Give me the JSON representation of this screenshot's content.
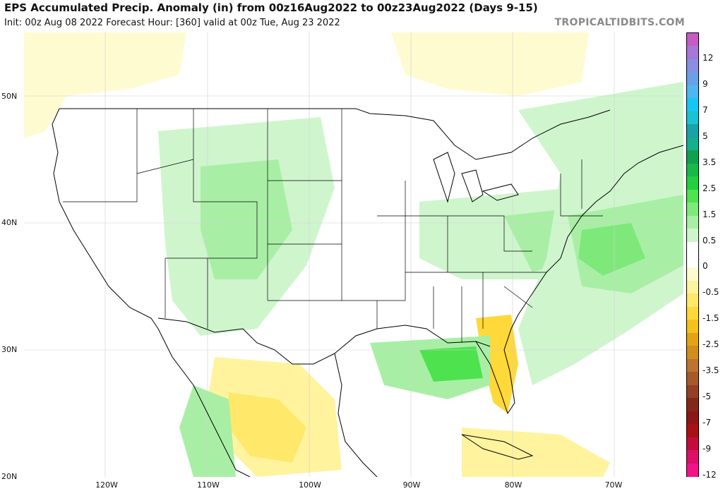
{
  "header": {
    "title": "EPS Accumulated Precip. Anomaly (in) from 00z16Aug2022 to 00z23Aug2022 (Days 9-15)",
    "subtitle": "Init: 00z Aug 08 2022   Forecast Hour: [360]   valid at 00z Tue, Aug 23 2022",
    "brand": "TROPICALTIDBITS.COM"
  },
  "map": {
    "lat_labels": [
      "50N",
      "40N",
      "30N",
      "20N"
    ],
    "lon_labels": [
      "120W",
      "110W",
      "100W",
      "90W",
      "80W",
      "70W"
    ]
  },
  "colorbar": {
    "labels": [
      "12",
      "9",
      "7",
      "5",
      "3.5",
      "2.5",
      "1.5",
      "0.5",
      "0",
      "-0.5",
      "-1.5",
      "-2.5",
      "-3.5",
      "-5",
      "-7",
      "-9",
      "-12"
    ],
    "colors": [
      "#c45cc4",
      "#a777d6",
      "#8a8ee0",
      "#6aa1e6",
      "#4fb6ef",
      "#16c7f5",
      "#18c3d3",
      "#1aa2a6",
      "#12b08c",
      "#0fa050",
      "#18b94a",
      "#22cf3e",
      "#4fe24f",
      "#7ee97a",
      "#a8efa5",
      "#cff5cd",
      "#ffffff",
      "#ffffff",
      "#fffbd0",
      "#fff39e",
      "#ffe86a",
      "#ffd83a",
      "#f4c21c",
      "#e2a413",
      "#d08e20",
      "#bb7430",
      "#a65a2a",
      "#934023",
      "#80291b",
      "#8a1717",
      "#a81212",
      "#c40c3c",
      "#dc0f69",
      "#f0138a"
    ]
  }
}
